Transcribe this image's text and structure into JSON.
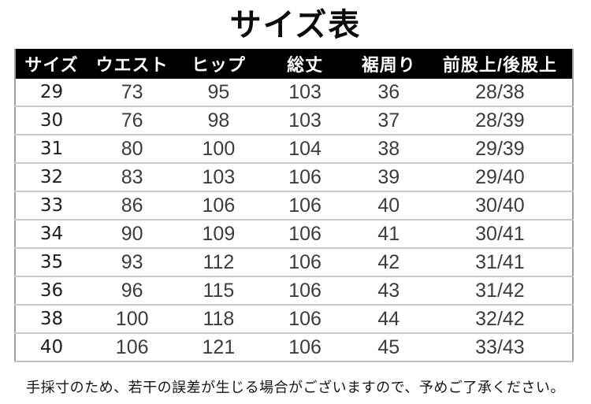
{
  "title": "サイズ表",
  "table": {
    "headers": [
      "サイズ",
      "ウエスト",
      "ヒップ",
      "総丈",
      "裾周り",
      "前股上/後股上"
    ],
    "rows": [
      [
        "29",
        "73",
        "95",
        "103",
        "36",
        "28/38"
      ],
      [
        "30",
        "76",
        "98",
        "103",
        "37",
        "28/39"
      ],
      [
        "31",
        "80",
        "100",
        "104",
        "38",
        "29/39"
      ],
      [
        "32",
        "83",
        "103",
        "106",
        "39",
        "29/40"
      ],
      [
        "33",
        "86",
        "106",
        "106",
        "40",
        "30/40"
      ],
      [
        "34",
        "90",
        "109",
        "106",
        "41",
        "30/41"
      ],
      [
        "35",
        "93",
        "112",
        "106",
        "42",
        "31/41"
      ],
      [
        "36",
        "96",
        "115",
        "106",
        "43",
        "31/42"
      ],
      [
        "38",
        "100",
        "118",
        "106",
        "44",
        "32/42"
      ],
      [
        "40",
        "106",
        "121",
        "106",
        "45",
        "33/43"
      ]
    ]
  },
  "footer_note": "手採寸のため、若干の誤差が生じる場合がございますので、予めご了承ください。",
  "colors": {
    "header_bg": "#000000",
    "header_text": "#ffffff",
    "row_separator": "#c9c9c9",
    "side_border": "#9f9f9f",
    "body_text": "#3c3c3c"
  }
}
